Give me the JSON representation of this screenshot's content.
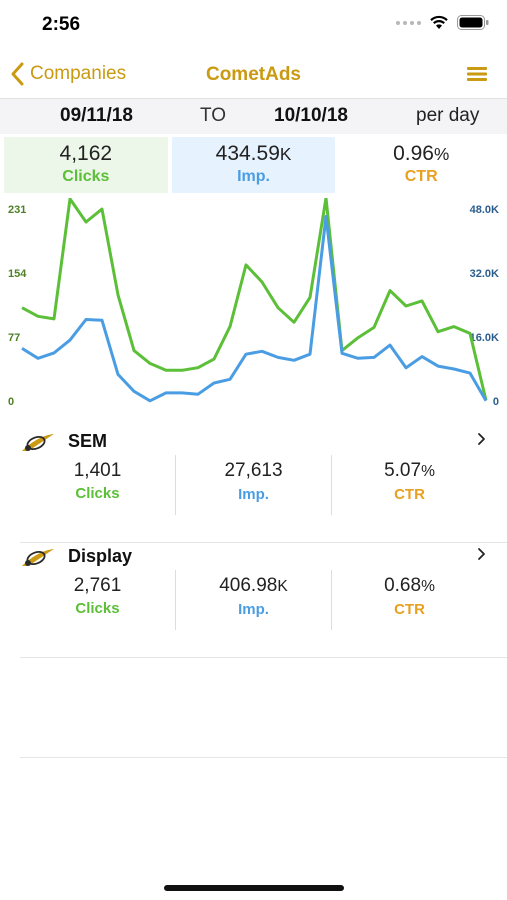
{
  "status_bar": {
    "time": "2:56"
  },
  "nav": {
    "back_label": "Companies",
    "title": "CometAds"
  },
  "date_range": {
    "from": "09/11/18",
    "to_label": "TO",
    "to": "10/10/18",
    "period": "per day"
  },
  "summary": {
    "clicks": {
      "value": "4,162",
      "label": "Clicks"
    },
    "impressions": {
      "value": "434.59",
      "unit": "K",
      "label": "Imp."
    },
    "ctr": {
      "value": "0.96",
      "unit": "%",
      "label": "CTR"
    }
  },
  "chart_data": {
    "type": "line",
    "left_axis": {
      "ticks": [
        "231",
        "154",
        "77",
        "0"
      ],
      "ylim": [
        0,
        231
      ]
    },
    "right_axis": {
      "ticks": [
        "48.0K",
        "32.0K",
        "16.0K",
        "0"
      ],
      "ylim": [
        0,
        48000
      ]
    },
    "series": [
      {
        "color": "#5cbf38",
        "axis": "left",
        "values": [
          110,
          100,
          97,
          237,
          210,
          225,
          125,
          60,
          45,
          37,
          37,
          40,
          50,
          88,
          160,
          140,
          110,
          93,
          122,
          238,
          60,
          75,
          87,
          130,
          112,
          118,
          82,
          88,
          80,
          2
        ]
      },
      {
        "color": "#4a9de3",
        "axis": "right",
        "values": [
          13000,
          10600,
          11900,
          15000,
          20000,
          19800,
          6700,
          2600,
          300,
          2200,
          2200,
          1900,
          4600,
          5500,
          11600,
          12300,
          10800,
          10100,
          11600,
          45000,
          11800,
          10600,
          10800,
          13800,
          8300,
          11000,
          8700,
          8000,
          7000,
          300
        ]
      }
    ],
    "colors": {
      "clicks": "#5cbf38",
      "impressions": "#4a9de3"
    }
  },
  "campaigns": [
    {
      "name": "SEM",
      "clicks": {
        "value": "1,401",
        "label": "Clicks"
      },
      "impressions": {
        "value": "27,613",
        "unit": "",
        "label": "Imp."
      },
      "ctr": {
        "value": "5.07",
        "unit": "%",
        "label": "CTR"
      }
    },
    {
      "name": "Display",
      "clicks": {
        "value": "2,761",
        "label": "Clicks"
      },
      "impressions": {
        "value": "406.98",
        "unit": "K",
        "label": "Imp."
      },
      "ctr": {
        "value": "0.68",
        "unit": "%",
        "label": "CTR"
      }
    }
  ],
  "icons": {
    "back": "chevron-left-icon",
    "menu": "hamburger-menu-icon",
    "campaign": "comet-icon",
    "row": "chevron-right-icon"
  },
  "colors": {
    "accent": "#c99a12",
    "green": "#5cbf38",
    "blue": "#4a9de3",
    "orange": "#e8a020"
  }
}
